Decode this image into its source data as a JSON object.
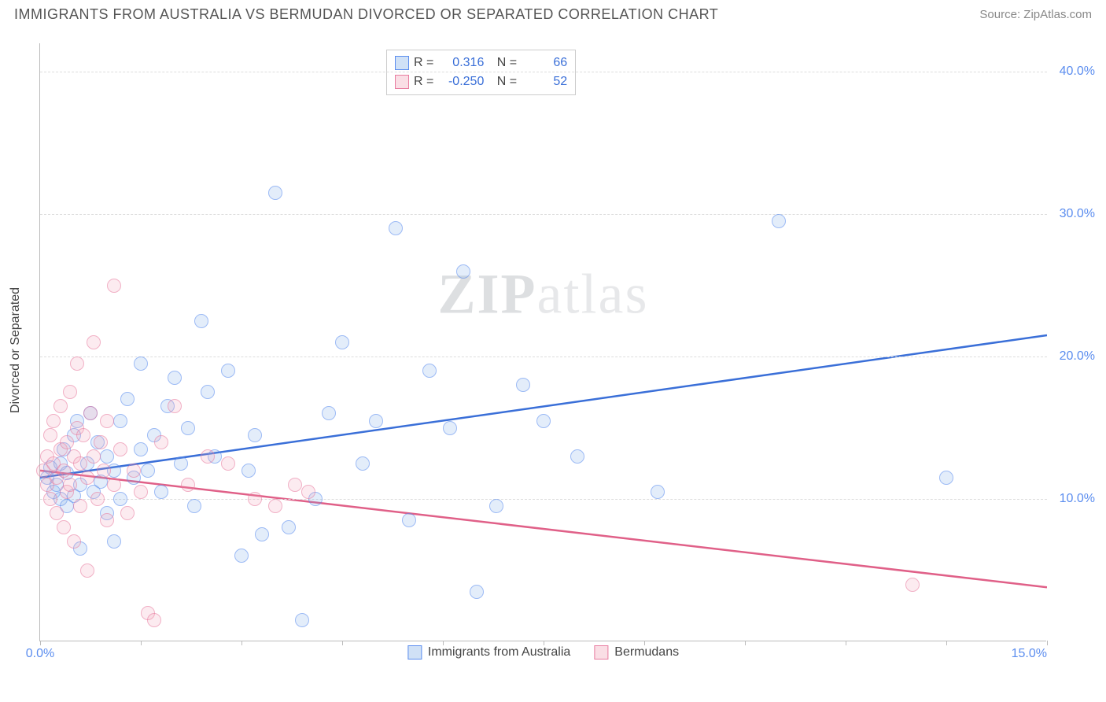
{
  "header": {
    "title": "IMMIGRANTS FROM AUSTRALIA VS BERMUDAN DIVORCED OR SEPARATED CORRELATION CHART",
    "source_prefix": "Source: ",
    "source": "ZipAtlas.com"
  },
  "watermark": {
    "left": "ZIP",
    "right": "atlas"
  },
  "chart": {
    "type": "scatter",
    "ylabel": "Divorced or Separated",
    "xlim": [
      0,
      15
    ],
    "ylim": [
      0,
      42
    ],
    "x_ticks": [
      0,
      1.5,
      3,
      4.5,
      6,
      7.5,
      9,
      10.5,
      12,
      13.5,
      15
    ],
    "x_tick_labels": {
      "0": "0.0%",
      "15": "15.0%"
    },
    "y_gridlines": [
      10,
      20,
      30,
      40
    ],
    "y_tick_labels": {
      "10": "10.0%",
      "20": "20.0%",
      "30": "30.0%",
      "40": "40.0%"
    },
    "background_color": "#ffffff",
    "grid_color": "#dddddd",
    "axis_color": "#bbbbbb",
    "tick_label_color": "#5b8def",
    "series": [
      {
        "name": "Immigrants from Australia",
        "color_fill": "rgba(120,170,230,0.35)",
        "color_stroke": "#5b8def",
        "trend_color": "#3a6fd8",
        "R": "0.316",
        "N": "66",
        "trend": {
          "x1": 0,
          "y1": 11.5,
          "x2": 15,
          "y2": 21.5
        },
        "points": [
          [
            0.1,
            11.5
          ],
          [
            0.15,
            12.2
          ],
          [
            0.2,
            10.5
          ],
          [
            0.25,
            11.0
          ],
          [
            0.3,
            12.5
          ],
          [
            0.3,
            10.0
          ],
          [
            0.35,
            13.5
          ],
          [
            0.4,
            9.5
          ],
          [
            0.4,
            11.8
          ],
          [
            0.5,
            14.5
          ],
          [
            0.5,
            10.2
          ],
          [
            0.55,
            15.5
          ],
          [
            0.6,
            11.0
          ],
          [
            0.7,
            12.5
          ],
          [
            0.75,
            16.0
          ],
          [
            0.8,
            10.5
          ],
          [
            0.85,
            14.0
          ],
          [
            0.9,
            11.2
          ],
          [
            1.0,
            13.0
          ],
          [
            1.0,
            9.0
          ],
          [
            1.1,
            12.0
          ],
          [
            1.2,
            15.5
          ],
          [
            1.2,
            10.0
          ],
          [
            1.3,
            17.0
          ],
          [
            1.4,
            11.5
          ],
          [
            1.5,
            13.5
          ],
          [
            1.5,
            19.5
          ],
          [
            1.6,
            12.0
          ],
          [
            1.7,
            14.5
          ],
          [
            1.8,
            10.5
          ],
          [
            1.9,
            16.5
          ],
          [
            2.0,
            18.5
          ],
          [
            2.1,
            12.5
          ],
          [
            2.2,
            15.0
          ],
          [
            2.4,
            22.5
          ],
          [
            2.5,
            17.5
          ],
          [
            2.6,
            13.0
          ],
          [
            2.8,
            19.0
          ],
          [
            3.0,
            6.0
          ],
          [
            3.1,
            12.0
          ],
          [
            3.2,
            14.5
          ],
          [
            3.3,
            7.5
          ],
          [
            3.5,
            31.5
          ],
          [
            3.7,
            8.0
          ],
          [
            3.9,
            1.5
          ],
          [
            4.1,
            10.0
          ],
          [
            4.3,
            16.0
          ],
          [
            4.5,
            21.0
          ],
          [
            4.8,
            12.5
          ],
          [
            5.0,
            15.5
          ],
          [
            5.3,
            29.0
          ],
          [
            5.5,
            8.5
          ],
          [
            5.8,
            19.0
          ],
          [
            6.1,
            15.0
          ],
          [
            6.3,
            26.0
          ],
          [
            6.5,
            3.5
          ],
          [
            6.8,
            9.5
          ],
          [
            7.2,
            18.0
          ],
          [
            7.5,
            15.5
          ],
          [
            8.0,
            13.0
          ],
          [
            9.2,
            10.5
          ],
          [
            11.0,
            29.5
          ],
          [
            13.5,
            11.5
          ],
          [
            0.6,
            6.5
          ],
          [
            1.1,
            7.0
          ],
          [
            2.3,
            9.5
          ]
        ]
      },
      {
        "name": "Bermudans",
        "color_fill": "rgba(240,160,180,0.35)",
        "color_stroke": "#e87ca0",
        "trend_color": "#e06088",
        "R": "-0.250",
        "N": "52",
        "trend": {
          "x1": 0,
          "y1": 12.0,
          "x2": 15,
          "y2": 3.8
        },
        "points": [
          [
            0.05,
            12.0
          ],
          [
            0.1,
            13.0
          ],
          [
            0.1,
            11.0
          ],
          [
            0.15,
            14.5
          ],
          [
            0.15,
            10.0
          ],
          [
            0.2,
            12.5
          ],
          [
            0.2,
            15.5
          ],
          [
            0.25,
            11.5
          ],
          [
            0.25,
            9.0
          ],
          [
            0.3,
            13.5
          ],
          [
            0.3,
            16.5
          ],
          [
            0.35,
            12.0
          ],
          [
            0.35,
            8.0
          ],
          [
            0.4,
            14.0
          ],
          [
            0.4,
            10.5
          ],
          [
            0.45,
            17.5
          ],
          [
            0.45,
            11.0
          ],
          [
            0.5,
            13.0
          ],
          [
            0.5,
            7.0
          ],
          [
            0.55,
            15.0
          ],
          [
            0.55,
            19.5
          ],
          [
            0.6,
            12.5
          ],
          [
            0.6,
            9.5
          ],
          [
            0.65,
            14.5
          ],
          [
            0.7,
            11.5
          ],
          [
            0.7,
            5.0
          ],
          [
            0.75,
            16.0
          ],
          [
            0.8,
            13.0
          ],
          [
            0.8,
            21.0
          ],
          [
            0.85,
            10.0
          ],
          [
            0.9,
            14.0
          ],
          [
            0.95,
            12.0
          ],
          [
            1.0,
            8.5
          ],
          [
            1.0,
            15.5
          ],
          [
            1.1,
            11.0
          ],
          [
            1.1,
            25.0
          ],
          [
            1.2,
            13.5
          ],
          [
            1.3,
            9.0
          ],
          [
            1.4,
            12.0
          ],
          [
            1.5,
            10.5
          ],
          [
            1.6,
            2.0
          ],
          [
            1.7,
            1.5
          ],
          [
            1.8,
            14.0
          ],
          [
            2.0,
            16.5
          ],
          [
            2.2,
            11.0
          ],
          [
            2.5,
            13.0
          ],
          [
            2.8,
            12.5
          ],
          [
            3.2,
            10.0
          ],
          [
            3.5,
            9.5
          ],
          [
            3.8,
            11.0
          ],
          [
            4.0,
            10.5
          ],
          [
            13.0,
            4.0
          ]
        ]
      }
    ],
    "legend_top": {
      "r_label": "R =",
      "n_label": "N ="
    },
    "legend_bottom": [
      {
        "swatch": "blue",
        "label_path": "chart.series.0.name"
      },
      {
        "swatch": "pink",
        "label_path": "chart.series.1.name"
      }
    ]
  }
}
